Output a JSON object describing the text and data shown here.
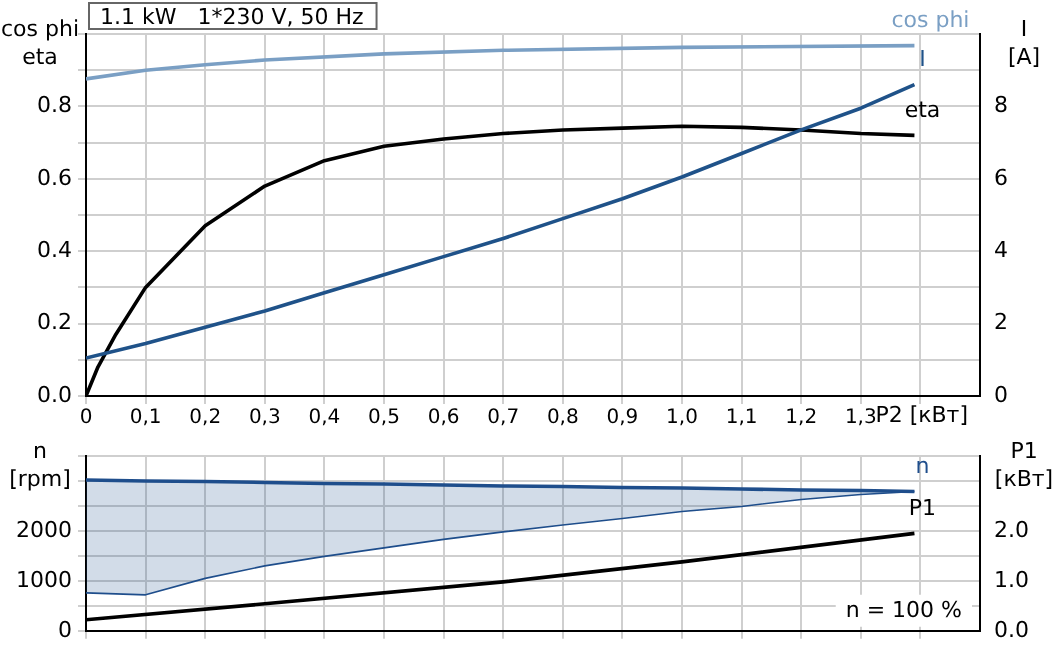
{
  "chart_data": [
    {
      "type": "line",
      "title": "1.1 kW   1*230 V, 50 Hz",
      "ylabel": "cos phi\neta",
      "y2label": "I\n[A]",
      "xlabel": "P2 [кВт]",
      "legend": false,
      "grid": true,
      "xlim": [
        0,
        1.5
      ],
      "xticks": [
        0,
        {
          "value": 0.1,
          "label": "0,1"
        },
        {
          "value": 0.2,
          "label": "0,2"
        },
        {
          "value": 0.3,
          "label": "0,3"
        },
        {
          "value": 0.4,
          "label": "0,4"
        },
        {
          "value": 0.5,
          "label": "0,5"
        },
        {
          "value": 0.6,
          "label": "0,6"
        },
        {
          "value": 0.7,
          "label": "0,7"
        },
        {
          "value": 0.8,
          "label": "0,8"
        },
        {
          "value": 0.9,
          "label": "0,9"
        },
        {
          "value": 1.0,
          "label": "1,0"
        },
        {
          "value": 1.1,
          "label": "1,1"
        },
        {
          "value": 1.2,
          "label": "1,2"
        },
        {
          "value": 1.3,
          "label": "1,3"
        },
        {
          "value": 1.4,
          "label": null
        }
      ],
      "ylim": [
        0,
        1
      ],
      "yticks": [
        {
          "value": 0,
          "label": "0.0"
        },
        {
          "value": 0.1,
          "label": null
        },
        {
          "value": 0.2,
          "label": "0.2"
        },
        {
          "value": 0.3,
          "label": null
        },
        {
          "value": 0.4,
          "label": "0.4"
        },
        {
          "value": 0.5,
          "label": null
        },
        {
          "value": 0.6,
          "label": "0.6"
        },
        {
          "value": 0.7,
          "label": null
        },
        {
          "value": 0.8,
          "label": "0.8"
        },
        {
          "value": 0.9,
          "label": null
        },
        {
          "value": 1.0,
          "label": null
        }
      ],
      "y2lim": [
        0,
        10
      ],
      "y2ticks": [
        0,
        2,
        4,
        6,
        8
      ],
      "series": [
        {
          "name": "cos phi",
          "color": "#7a9fc4",
          "x": [
            0,
            0.1,
            0.2,
            0.3,
            0.5,
            0.7,
            1.0,
            1.39
          ],
          "values": [
            0.876,
            0.9,
            0.915,
            0.928,
            0.945,
            0.955,
            0.963,
            0.968
          ]
        },
        {
          "name": "I",
          "color": "#1f5289",
          "axis": "y2",
          "x": [
            0,
            0.1,
            0.2,
            0.3,
            0.4,
            0.5,
            0.6,
            0.7,
            0.8,
            0.9,
            1.0,
            1.1,
            1.2,
            1.3,
            1.39
          ],
          "values": [
            1.05,
            1.45,
            1.9,
            2.35,
            2.85,
            3.35,
            3.85,
            4.35,
            4.9,
            5.45,
            6.05,
            6.7,
            7.35,
            7.95,
            8.6
          ]
        },
        {
          "name": "eta",
          "color": "#000000",
          "x": [
            0,
            0.02,
            0.05,
            0.1,
            0.2,
            0.3,
            0.4,
            0.5,
            0.6,
            0.7,
            0.8,
            0.9,
            1.0,
            1.1,
            1.2,
            1.3,
            1.39
          ],
          "values": [
            0,
            0.08,
            0.17,
            0.3,
            0.47,
            0.58,
            0.65,
            0.69,
            0.71,
            0.725,
            0.735,
            0.74,
            0.745,
            0.742,
            0.735,
            0.725,
            0.72
          ]
        }
      ]
    },
    {
      "type": "line",
      "ylabel": "n\n[rpm]",
      "y2label": "P1\n[кВт]",
      "legend": false,
      "grid": true,
      "tick_labels": "y",
      "annotations": [
        "n = 100 %"
      ],
      "xlim": [
        0,
        1.5
      ],
      "xticks": [
        0,
        0.1,
        0.2,
        0.3,
        0.4,
        0.5,
        0.6,
        0.7,
        0.8,
        0.9,
        1.0,
        1.1,
        1.2,
        1.3,
        1.4
      ],
      "ylim": [
        0,
        3500
      ],
      "yticks": [
        0,
        {
          "value": 500,
          "label": null
        },
        1000,
        {
          "value": 1500,
          "label": null
        },
        2000,
        {
          "value": 2500,
          "label": null
        },
        {
          "value": 3000,
          "label": null
        },
        {
          "value": 3500,
          "label": null
        }
      ],
      "y2lim": [
        0,
        3.5
      ],
      "y2ticks": [
        {
          "value": 0,
          "label": "0.0"
        },
        {
          "value": 1,
          "label": "1.0"
        },
        {
          "value": 2,
          "label": "2.0"
        }
      ],
      "series": [
        {
          "name": "n",
          "color": "#1f4e8c",
          "x": [
            0,
            0.1,
            0.2,
            0.3,
            0.4,
            0.5,
            0.6,
            0.7,
            0.8,
            0.9,
            1.0,
            1.1,
            1.2,
            1.3,
            1.39
          ],
          "values": [
            3020,
            3000,
            2990,
            2970,
            2950,
            2940,
            2920,
            2900,
            2890,
            2870,
            2860,
            2840,
            2820,
            2810,
            2790
          ],
          "upper": [
            3020,
            3000,
            2990,
            2970,
            2950,
            2940,
            2920,
            2900,
            2890,
            2870,
            2860,
            2840,
            2820,
            2810,
            2790
          ],
          "lower": [
            760,
            720,
            1050,
            1300,
            1490,
            1660,
            1830,
            1980,
            2120,
            2250,
            2390,
            2490,
            2630,
            2730,
            2790
          ]
        },
        {
          "color": "#1f4e8c",
          "x": [
            0,
            0.1,
            0.2,
            0.3,
            0.4,
            0.5,
            0.6,
            0.7,
            0.8,
            0.9,
            1.0,
            1.1,
            1.2,
            1.3,
            1.39
          ],
          "values": [
            760,
            720,
            1050,
            1300,
            1490,
            1660,
            1830,
            1980,
            2120,
            2250,
            2390,
            2490,
            2630,
            2730,
            2790
          ]
        },
        {
          "name": "P1",
          "color": "#000000",
          "axis": "y2",
          "x": [
            0,
            0.3,
            0.7,
            1.0,
            1.39
          ],
          "values": [
            0.22,
            0.54,
            0.98,
            1.38,
            1.95
          ]
        }
      ]
    }
  ]
}
